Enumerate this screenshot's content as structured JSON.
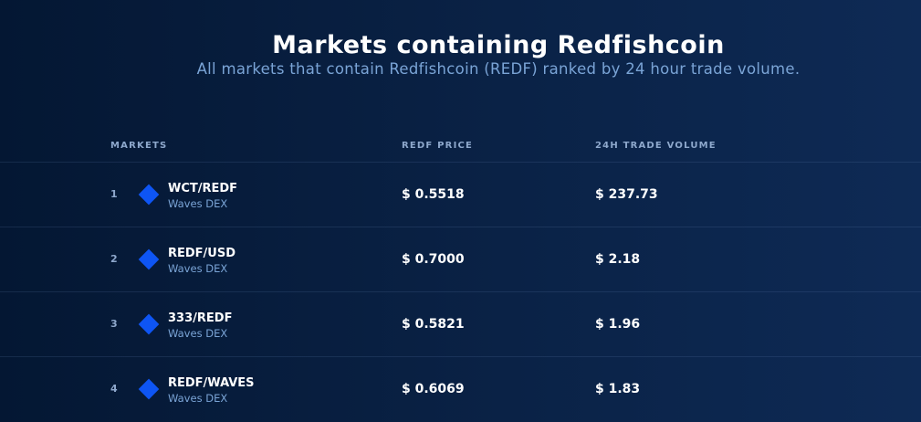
{
  "header": {
    "title": "Markets containing Redfishcoin",
    "subtitle": "All markets that contain Redfishcoin (REDF) ranked by 24 hour trade volume."
  },
  "table": {
    "columns": [
      "MARKETS",
      "REDF PRICE",
      "24H TRADE VOLUME"
    ],
    "rows": [
      {
        "rank": "1",
        "pair": "WCT/REDF",
        "exchange": "Waves DEX",
        "price": "$ 0.5518",
        "volume": "$ 237.73"
      },
      {
        "rank": "2",
        "pair": "REDF/USD",
        "exchange": "Waves DEX",
        "price": "$ 0.7000",
        "volume": "$ 2.18"
      },
      {
        "rank": "3",
        "pair": "333/REDF",
        "exchange": "Waves DEX",
        "price": "$ 0.5821",
        "volume": "$ 1.96"
      },
      {
        "rank": "4",
        "pair": "REDF/WAVES",
        "exchange": "Waves DEX",
        "price": "$ 0.6069",
        "volume": "$ 1.83"
      }
    ]
  },
  "colors": {
    "background": "#0a2246",
    "accent": "#0e55f4",
    "muted_text": "#7aa4d6"
  },
  "icons": {
    "market": "waves-diamond-icon"
  }
}
